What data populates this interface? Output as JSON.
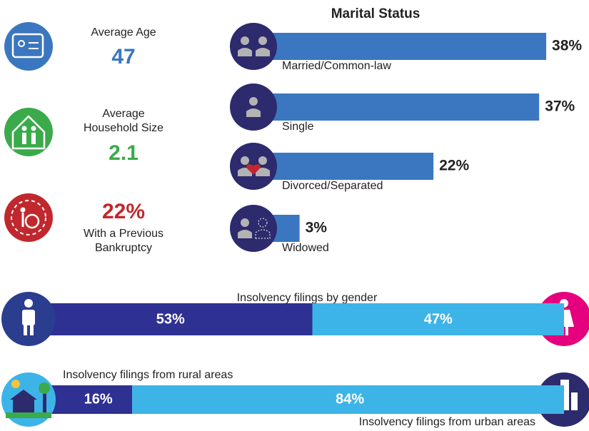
{
  "stats": [
    {
      "label": "Average Age",
      "value": "47"
    },
    {
      "label": "Average Household Size",
      "value": "2.1"
    },
    {
      "value": "22%",
      "label": "With a Previous Bankruptcy"
    }
  ],
  "marital_status": {
    "title": "Marital Status",
    "items": [
      {
        "label": "Married/Common-law",
        "value": 38,
        "value_label": "38%"
      },
      {
        "label": "Single",
        "value": 37,
        "value_label": "37%"
      },
      {
        "label": "Divorced/Separated",
        "value": 22,
        "value_label": "22%"
      },
      {
        "label": "Widowed",
        "value": 3,
        "value_label": "3%"
      }
    ]
  },
  "gender": {
    "title": "Insolvency filings by gender",
    "segments": [
      {
        "value": 53,
        "value_label": "53%"
      },
      {
        "value": 47,
        "value_label": "47%"
      }
    ]
  },
  "area": {
    "segments": [
      {
        "label": "Insolvency filings from rural areas",
        "value": 16,
        "value_label": "16%"
      },
      {
        "label": "Insolvency filings from urban areas",
        "value": 84,
        "value_label": "84%"
      }
    ]
  }
}
